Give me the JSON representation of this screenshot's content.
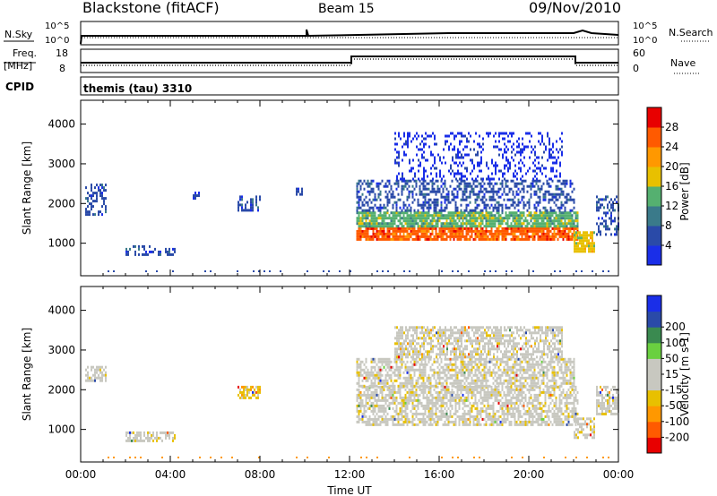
{
  "header": {
    "station": "Blackstone (fitACF)",
    "beam": "Beam 15",
    "date": "09/Nov/2010"
  },
  "aux_panels": {
    "nsky_label": "N.Sky",
    "nsearch_label": "N.Search",
    "freq_label": "Freq.",
    "freq_unit": "[MHz]",
    "nave_label": "Nave",
    "cpid_label": "CPID",
    "cpid_value": "themis (tau) 3310",
    "tick_1e5": "10^5",
    "tick_1e0": "10^0",
    "freq_ticks": [
      "18",
      "8"
    ],
    "nave_ticks": [
      "60",
      "0"
    ]
  },
  "colors": {
    "power_scale": [
      "#1a2ee8",
      "#2a4aa8",
      "#3a7a8a",
      "#55b070",
      "#e8c000",
      "#ff9800",
      "#ff5a00",
      "#e80000"
    ],
    "velocity_scale": [
      "#e80000",
      "#ff5a00",
      "#ff9800",
      "#e8c000",
      "#c8c8c0",
      "#c8c8c0",
      "#6ad040",
      "#3a8a50",
      "#2a4aa8",
      "#1a2ee8"
    ]
  },
  "chart_data": [
    {
      "type": "heatmap",
      "panel": "power",
      "ylabel": "Slant Range [km]",
      "colorbar_label": "Power [dB]",
      "colorbar_ticks": [
        "4",
        "8",
        "12",
        "16",
        "20",
        "24",
        "28"
      ],
      "ylim": [
        180,
        4600
      ],
      "y_ticks": [
        1000,
        2000,
        3000,
        4000
      ],
      "x_ticks": [
        "00:00",
        "04:00",
        "08:00",
        "12:00",
        "16:00",
        "20:00",
        "00:00"
      ],
      "xlim_hours": [
        0,
        24
      ],
      "regions": [
        {
          "t": [
            0.2,
            1.1
          ],
          "r": [
            1700,
            2500
          ],
          "level": 1
        },
        {
          "t": [
            2.0,
            4.2
          ],
          "r": [
            700,
            950
          ],
          "level": 1
        },
        {
          "t": [
            5.0,
            5.3
          ],
          "r": [
            2100,
            2300
          ],
          "level": 1
        },
        {
          "t": [
            7.0,
            8.0
          ],
          "r": [
            1800,
            2200
          ],
          "level": 1
        },
        {
          "t": [
            9.6,
            9.9
          ],
          "r": [
            2200,
            2400
          ],
          "level": 1
        },
        {
          "t": [
            12.3,
            22.2
          ],
          "r": [
            1100,
            1400
          ],
          "level": 6
        },
        {
          "t": [
            12.3,
            22.2
          ],
          "r": [
            1400,
            1800
          ],
          "level": 3
        },
        {
          "t": [
            12.3,
            22.0
          ],
          "r": [
            1800,
            2600
          ],
          "level": 1
        },
        {
          "t": [
            14.0,
            21.5
          ],
          "r": [
            2600,
            3800
          ],
          "level": 0
        },
        {
          "t": [
            22.0,
            22.9
          ],
          "r": [
            800,
            1300
          ],
          "level": 4
        },
        {
          "t": [
            23.0,
            24.0
          ],
          "r": [
            1200,
            2200
          ],
          "level": 1
        }
      ]
    },
    {
      "type": "heatmap",
      "panel": "velocity",
      "ylabel": "Slant Range [km]",
      "colorbar_label": "Velocity [m s-1]",
      "colorbar_ticks": [
        "-200",
        "-100",
        "-50",
        "-15",
        "15",
        "50",
        "100",
        "200"
      ],
      "ylim": [
        180,
        4600
      ],
      "y_ticks": [
        1000,
        2000,
        3000,
        4000
      ],
      "x_ticks": [
        "00:00",
        "04:00",
        "08:00",
        "12:00",
        "16:00",
        "20:00",
        "00:00"
      ],
      "xlabel": "Time UT",
      "xlim_hours": [
        0,
        24
      ],
      "regions": [
        {
          "t": [
            0.2,
            1.1
          ],
          "r": [
            2200,
            2600
          ],
          "level": 4
        },
        {
          "t": [
            2.0,
            4.2
          ],
          "r": [
            700,
            950
          ],
          "level": 4
        },
        {
          "t": [
            7.0,
            8.0
          ],
          "r": [
            1800,
            2100
          ],
          "level": 3
        },
        {
          "t": [
            12.3,
            22.2
          ],
          "r": [
            1100,
            2100
          ],
          "level": 4
        },
        {
          "t": [
            12.3,
            22.0
          ],
          "r": [
            2100,
            2800
          ],
          "level": 4
        },
        {
          "t": [
            14.0,
            21.5
          ],
          "r": [
            2800,
            3600
          ],
          "level": 4
        },
        {
          "t": [
            22.0,
            22.9
          ],
          "r": [
            800,
            1300
          ],
          "level": 4
        },
        {
          "t": [
            23.0,
            24.0
          ],
          "r": [
            1400,
            2100
          ],
          "level": 4
        }
      ]
    }
  ]
}
